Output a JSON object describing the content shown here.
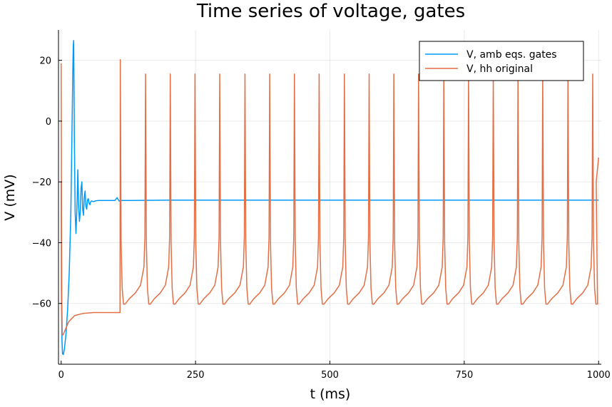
{
  "chart_data": {
    "type": "line",
    "title": "Time series of voltage, gates",
    "xlabel": "t (ms)",
    "ylabel": "V (mV)",
    "xlim": [
      -5,
      1005
    ],
    "ylim": [
      -80,
      30
    ],
    "xticks": [
      0,
      250,
      500,
      750,
      1000
    ],
    "xtick_labels": [
      "0",
      "250",
      "500",
      "750",
      "1000"
    ],
    "yticks": [
      -60,
      -40,
      -20,
      0,
      20
    ],
    "ytick_labels": [
      "−60",
      "−40",
      "−20",
      "0",
      "20"
    ],
    "grid": true,
    "legend": "top-right",
    "series": [
      {
        "name": "V, amb eqs. gates",
        "color": "#009AFA",
        "x": [
          0,
          0.5,
          1.5,
          2.5,
          4,
          6,
          9,
          12,
          15,
          18,
          20,
          21.5,
          22.5,
          23.3,
          24.5,
          26,
          27.5,
          29,
          30,
          31,
          32.5,
          34,
          35.5,
          37,
          38.5,
          40,
          41.5,
          43,
          44.5,
          46,
          47.5,
          49,
          50.5,
          52,
          53.5,
          55,
          57,
          60,
          65,
          70,
          80,
          90,
          100,
          104,
          106,
          108,
          110,
          115,
          130,
          200,
          400,
          600,
          800,
          1000
        ],
        "y": [
          -20,
          -55,
          -72,
          -76.5,
          -76.8,
          -75,
          -70,
          -62,
          -50,
          -30,
          -5,
          15,
          25,
          26.5,
          -5,
          -30,
          -37,
          -30,
          -24,
          -16,
          -28,
          -33,
          -30,
          -22,
          -20,
          -29,
          -31,
          -25,
          -23,
          -28,
          -29,
          -26,
          -25.5,
          -27,
          -27.5,
          -26.5,
          -26.3,
          -26.5,
          -26.2,
          -26.1,
          -26.1,
          -26.1,
          -26.1,
          -25.2,
          -25.8,
          -26.3,
          -26.1,
          -26.1,
          -26.1,
          -26,
          -26,
          -26,
          -26,
          -26
        ]
      },
      {
        "name": "V, hh original",
        "color": "#E26F46",
        "x_end": 1000,
        "y": [],
        "spike_times": [
          0,
          110,
          157,
          203,
          249,
          295,
          342,
          388,
          434,
          480,
          527,
          573,
          619,
          665,
          712,
          758,
          804,
          850,
          896,
          943,
          989
        ],
        "spike_peaks": [
          19,
          20.2,
          15.5,
          15.5,
          15.5,
          15.5,
          15.5,
          15.5,
          15.5,
          15.5,
          15.5,
          15.5,
          15.5,
          15.5,
          15.5,
          15.5,
          15.5,
          15.5,
          15.5,
          15.5,
          15.5
        ],
        "trough": -60.2,
        "initial_trough": -70.5,
        "plateau": -63,
        "end_value": -12
      }
    ]
  }
}
